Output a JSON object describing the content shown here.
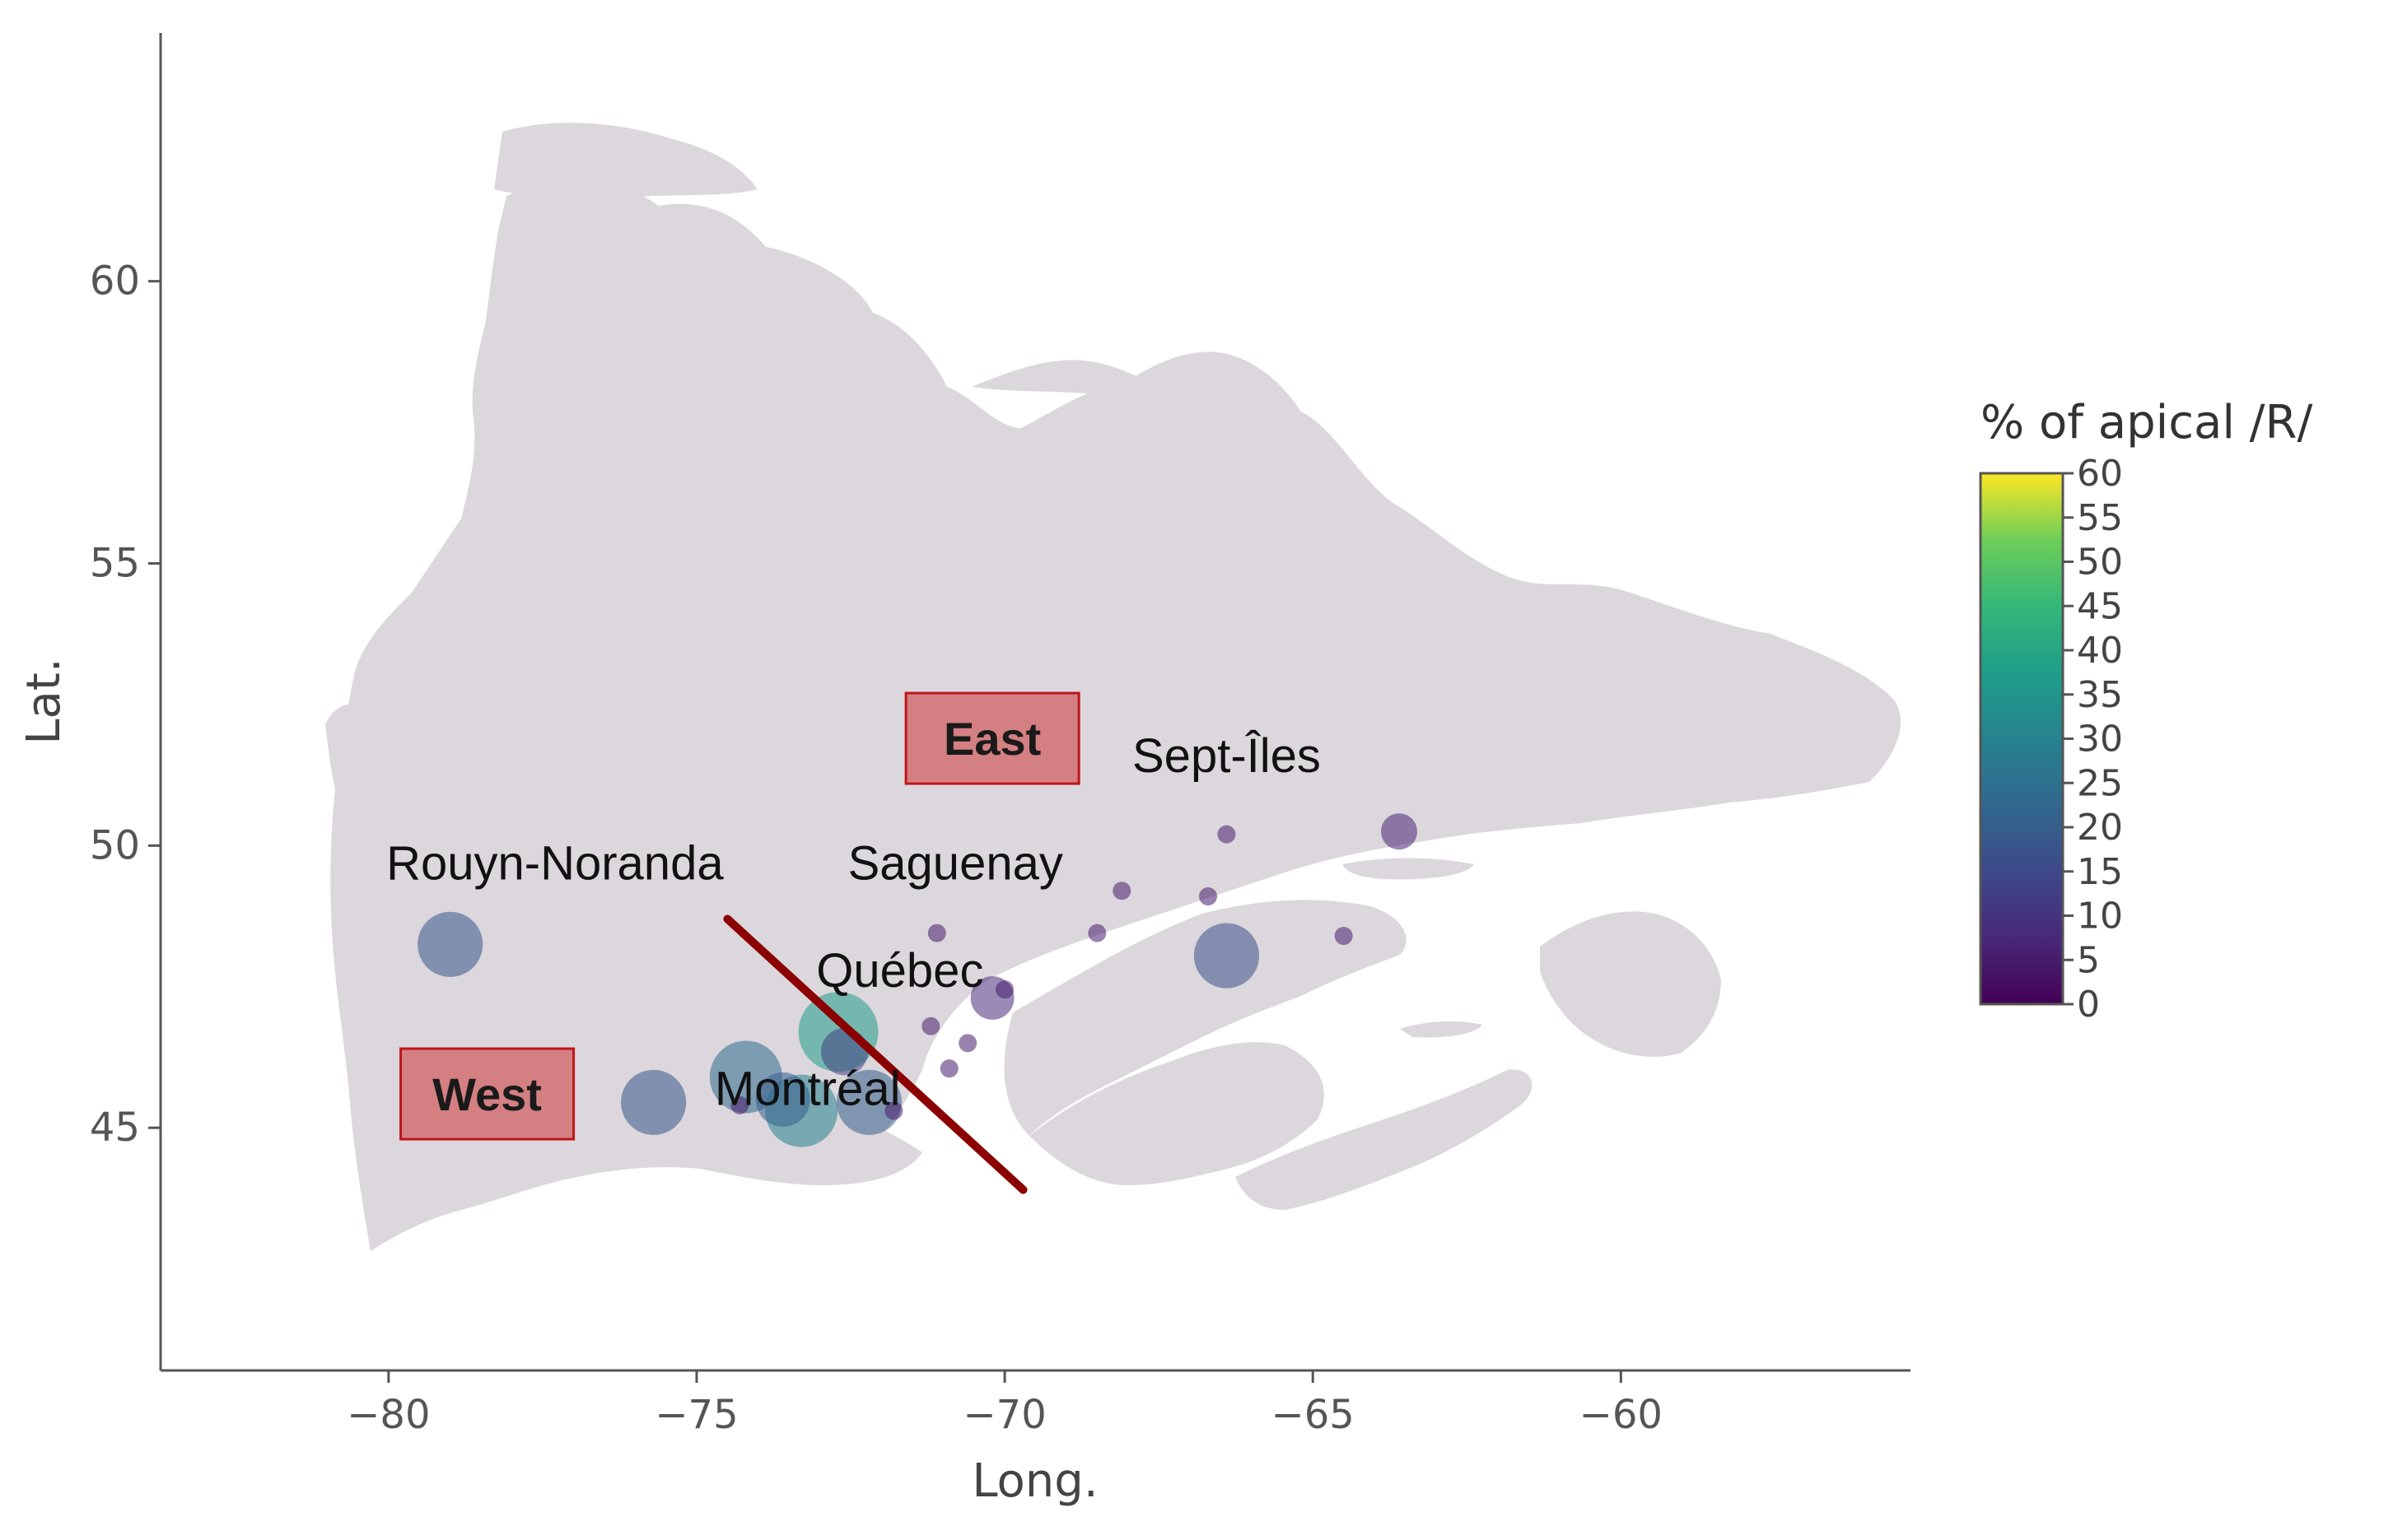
{
  "chart_data": {
    "type": "scatter",
    "xlabel": "Long.",
    "ylabel": "Lat.",
    "xlim": [
      -83.7,
      -55.3
    ],
    "ylim": [
      40.7,
      64.4
    ],
    "x_ticks": [
      -80,
      -75,
      -70,
      -65,
      -60
    ],
    "y_ticks": [
      45,
      50,
      55,
      60
    ],
    "x_tick_labels": [
      "−80",
      "−75",
      "−70",
      "−65",
      "−60"
    ],
    "y_tick_labels": [
      "45",
      "50",
      "55",
      "60"
    ],
    "colorbar": {
      "title": "% of apical /R/",
      "range": [
        0,
        60
      ],
      "ticks": [
        "60",
        "55",
        "50",
        "45",
        "40",
        "35",
        "30",
        "25",
        "20",
        "15",
        "10",
        "5",
        "0"
      ]
    },
    "points": [
      {
        "lon": -79.0,
        "lat": 48.25,
        "value": 18,
        "size": 3.6
      },
      {
        "lon": -75.7,
        "lat": 45.45,
        "value": 18,
        "size": 3.6
      },
      {
        "lon": -74.2,
        "lat": 45.9,
        "value": 23,
        "size": 4.0
      },
      {
        "lon": -73.6,
        "lat": 45.5,
        "value": 20,
        "size": 3.0
      },
      {
        "lon": -73.3,
        "lat": 45.3,
        "value": 30,
        "size": 4.0
      },
      {
        "lon": -72.7,
        "lat": 46.7,
        "value": 37,
        "size": 4.4
      },
      {
        "lon": -72.6,
        "lat": 46.35,
        "value": 13,
        "size": 2.6
      },
      {
        "lon": -72.2,
        "lat": 45.45,
        "value": 20,
        "size": 3.6
      },
      {
        "lon": -74.3,
        "lat": 45.4,
        "value": 5,
        "size": 1.0
      },
      {
        "lon": -71.8,
        "lat": 45.3,
        "value": 5,
        "size": 1.0
      },
      {
        "lon": -70.2,
        "lat": 47.3,
        "value": 8,
        "size": 2.4
      },
      {
        "lon": -70.0,
        "lat": 47.45,
        "value": 5,
        "size": 1.0
      },
      {
        "lon": -71.1,
        "lat": 48.45,
        "value": 5,
        "size": 1.0
      },
      {
        "lon": -71.2,
        "lat": 46.8,
        "value": 5,
        "size": 1.0
      },
      {
        "lon": -70.6,
        "lat": 46.5,
        "value": 5,
        "size": 1.0
      },
      {
        "lon": -70.9,
        "lat": 46.05,
        "value": 5,
        "size": 1.0
      },
      {
        "lon": -68.1,
        "lat": 49.2,
        "value": 5,
        "size": 1.0
      },
      {
        "lon": -68.5,
        "lat": 48.45,
        "value": 5,
        "size": 1.0
      },
      {
        "lon": -66.4,
        "lat": 50.2,
        "value": 5,
        "size": 1.0
      },
      {
        "lon": -66.7,
        "lat": 49.1,
        "value": 5,
        "size": 1.0
      },
      {
        "lon": -64.5,
        "lat": 48.4,
        "value": 5,
        "size": 1.0
      },
      {
        "lon": -63.6,
        "lat": 50.25,
        "value": 7,
        "size": 2.0
      },
      {
        "lon": -66.4,
        "lat": 48.05,
        "value": 17,
        "size": 3.6
      }
    ],
    "city_labels": [
      {
        "text": "Rouyn-Noranda",
        "lon": -77.3,
        "lat": 49.4
      },
      {
        "text": "Saguenay",
        "lon": -70.8,
        "lat": 49.4
      },
      {
        "text": "Sept-Îles",
        "lon": -66.4,
        "lat": 51.3
      },
      {
        "text": "Québec",
        "lon": -71.7,
        "lat": 47.5
      },
      {
        "text": "Montréal",
        "lon": -73.2,
        "lat": 45.4
      }
    ],
    "regions": [
      {
        "text": "East",
        "lon": -70.2,
        "lat": 51.9,
        "fill": "#d47f82",
        "border": "#c0151b"
      },
      {
        "text": "West",
        "lon": -78.4,
        "lat": 45.6,
        "fill": "#d47f82",
        "border": "#c0151b"
      }
    ],
    "divider_line": {
      "from": [
        -74.5,
        48.7
      ],
      "to": [
        -69.7,
        43.9
      ],
      "color": "#8b0000"
    },
    "land_color": "#dcd7dc",
    "axis_color": "#555555"
  }
}
